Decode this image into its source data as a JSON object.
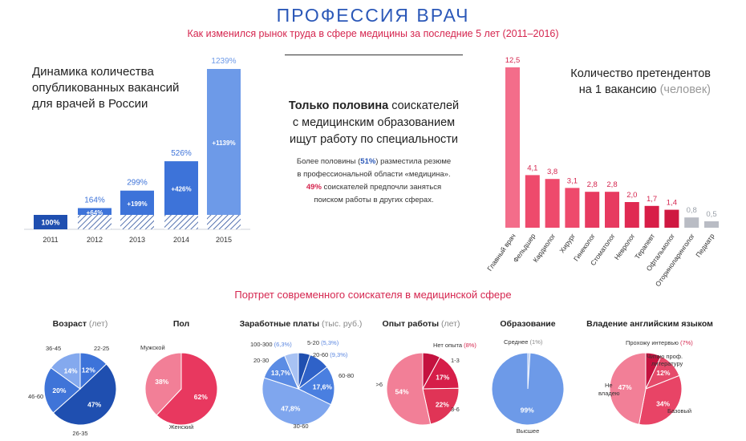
{
  "header": {
    "title": "ПРОФЕССИЯ ВРАЧ",
    "subtitle": "Как изменился рынок труда в сфере медицины за последние 5 лет (2011–2016)"
  },
  "vacancies": {
    "title_lines": [
      "Динамика количества",
      "опубликованных вакансий",
      "для врачей в России"
    ]
  },
  "summary": {
    "line1_bold": "Только половина",
    "line1_rest": " соискателей",
    "line2": "с медицинским образованием",
    "line3": "ищут работу по специальности",
    "note_l1_a": "Более половины (",
    "note_l1_b": "51%",
    "note_l1_c": ") разместила резюме",
    "note_l2": "в профессиональной области «медицина».",
    "note_l3_a": "49%",
    "note_l3_b": " соискателей предпочли заняться",
    "note_l4": "поиском работы в других сферах."
  },
  "candidates": {
    "title_line1": "Количество претендентов",
    "title_line2": "на 1 вакансию",
    "unit": "(человек)"
  },
  "portrait": {
    "title": "Портрет современного соискателя в медицинской сфере",
    "pie_titles": [
      {
        "main": "Возраст",
        "unit": "(лет)"
      },
      {
        "main": "Пол",
        "unit": ""
      },
      {
        "main": "Заработные платы",
        "unit": "(тыс. руб.)"
      },
      {
        "main": "Опыт работы",
        "unit": "(лет)"
      },
      {
        "main": "Образование",
        "unit": ""
      },
      {
        "main": "Владение английским языком",
        "unit": ""
      }
    ]
  },
  "colors": {
    "blue_dark": "#1f4fb0",
    "blue_mid": "#3d73d9",
    "blue_light": "#6d9ae8",
    "blue_pale": "#a9c3f2",
    "red_dark": "#c4123f",
    "red_mid": "#e8385f",
    "red_light": "#f27f97",
    "red_pale": "#f7b2c1",
    "gray": "#b9bcc4"
  },
  "chart_data": [
    {
      "type": "bar",
      "title": "Динамика количества опубликованных вакансий для врачей в России",
      "categories": [
        "2011",
        "2012",
        "2013",
        "2014",
        "2015"
      ],
      "values": [
        100,
        164,
        299,
        526,
        1239
      ],
      "value_labels": [
        "100%",
        "164%",
        "299%",
        "526%",
        "1239%"
      ],
      "growth_labels": [
        "",
        "+64%",
        "+199%",
        "+426%",
        "+1139%"
      ]
    },
    {
      "type": "bar",
      "title": "Количество претендентов на 1 вакансию (человек)",
      "categories": [
        "Главный врач",
        "Фельдшер",
        "Кардиолог",
        "Хирург",
        "Гинеколог",
        "Стоматолог",
        "Невролог",
        "Терапевт",
        "Офтальмолог",
        "Оториноларинголог",
        "Педиатр"
      ],
      "values": [
        12.5,
        4.1,
        3.8,
        3.1,
        2.8,
        2.8,
        2.0,
        1.7,
        1.4,
        0.8,
        0.5
      ],
      "value_labels": [
        "12,5",
        "4,1",
        "3,8",
        "3,1",
        "2,8",
        "2,8",
        "2,0",
        "1,7",
        "1,4",
        "0,8",
        "0,5"
      ]
    },
    {
      "type": "pie",
      "title": "Возраст (лет)",
      "slices": [
        {
          "label": "22-25",
          "value": 12,
          "text": "12%"
        },
        {
          "label": "26-35",
          "value": 47,
          "text": "47%"
        },
        {
          "label": "46-60",
          "value": 20,
          "text": "20%"
        },
        {
          "label": "36-45",
          "value": 14,
          "text": "14%"
        }
      ]
    },
    {
      "type": "pie",
      "title": "Пол",
      "slices": [
        {
          "label": "Женский",
          "value": 62,
          "text": "62%"
        },
        {
          "label": "Мужской",
          "value": 38,
          "text": "38%"
        }
      ]
    },
    {
      "type": "pie",
      "title": "Заработные платы (тыс. руб.)",
      "slices": [
        {
          "label": "5-20",
          "value": 5.3,
          "text": "",
          "note": "(5,3%)"
        },
        {
          "label": "20-60",
          "value": 9.3,
          "text": "",
          "note": "(9,3%)"
        },
        {
          "label": "60-80",
          "value": 17.6,
          "text": "17,6%"
        },
        {
          "label": "30-60",
          "value": 47.8,
          "text": "47,8%"
        },
        {
          "label": "20-30",
          "value": 13.7,
          "text": "13,7%"
        },
        {
          "label": "100-300",
          "value": 6.3,
          "text": "",
          "note": "(6,3%)"
        }
      ]
    },
    {
      "type": "pie",
      "title": "Опыт работы (лет)",
      "slices": [
        {
          "label": "Нет опыта",
          "value": 8,
          "text": "",
          "note": "(8%)"
        },
        {
          "label": "1-3",
          "value": 17,
          "text": "17%"
        },
        {
          "label": "3-6",
          "value": 22,
          "text": "22%"
        },
        {
          "label": ">6",
          "value": 54,
          "text": "54%"
        }
      ]
    },
    {
      "type": "pie",
      "title": "Образование",
      "slices": [
        {
          "label": "Среднее",
          "value": 1,
          "text": "",
          "note": "(1%)"
        },
        {
          "label": "Высшее",
          "value": 99,
          "text": "99%"
        }
      ]
    },
    {
      "type": "pie",
      "title": "Владение английским языком",
      "slices": [
        {
          "label": "Прохожу интервью",
          "value": 7,
          "text": "",
          "note": "(7%)"
        },
        {
          "label": "Читаю проф. литературу",
          "value": 12,
          "text": "12%"
        },
        {
          "label": "Базовый",
          "value": 34,
          "text": "34%"
        },
        {
          "label": "Не владею",
          "value": 47,
          "text": "47%"
        }
      ]
    }
  ]
}
